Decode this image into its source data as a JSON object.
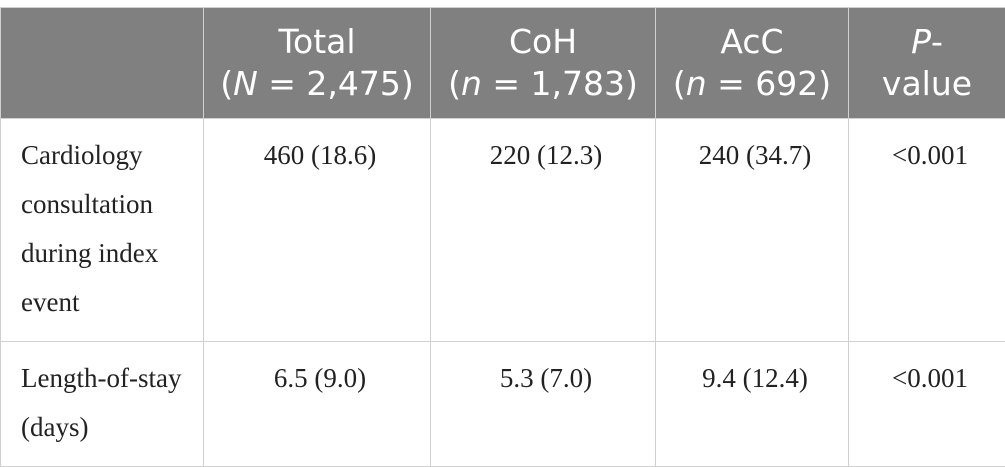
{
  "table": {
    "header": [
      [],
      [
        [
          {
            "text": "Total"
          }
        ],
        [
          {
            "text": "("
          },
          {
            "text": "N",
            "italic": true
          },
          {
            "text": " = 2,475)"
          }
        ]
      ],
      [
        [
          {
            "text": "CoH"
          }
        ],
        [
          {
            "text": "("
          },
          {
            "text": "n",
            "italic": true
          },
          {
            "text": " = 1,783)"
          }
        ]
      ],
      [
        [
          {
            "text": "AcC"
          }
        ],
        [
          {
            "text": "("
          },
          {
            "text": "n",
            "italic": true
          },
          {
            "text": " = 692)"
          }
        ]
      ],
      [
        [
          {
            "text": "P",
            "italic": true
          },
          {
            "text": "-"
          }
        ],
        [
          {
            "text": "value"
          }
        ]
      ]
    ],
    "rows": [
      [
        "Cardiology consultation during index event",
        "460 (18.6)",
        "220 (12.3)",
        "240 (34.7)",
        "<0.001"
      ],
      [
        "Length-of-stay (days)",
        "6.5 (9.0)",
        "5.3 (7.0)",
        "9.4 (12.4)",
        "<0.001"
      ]
    ]
  }
}
